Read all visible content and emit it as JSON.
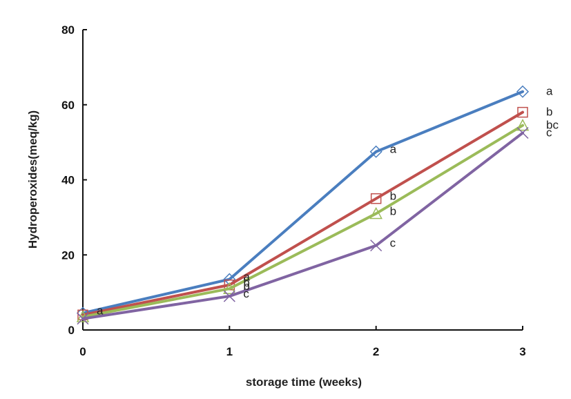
{
  "chart_data": {
    "type": "line",
    "xlabel": "storage time (weeks)",
    "ylabel": "Hydroperoxides(meq/kg)",
    "xlim": [
      0,
      3
    ],
    "ylim": [
      0,
      80
    ],
    "xticks": [
      0,
      1,
      2,
      3
    ],
    "yticks": [
      0,
      20,
      40,
      60,
      80
    ],
    "x": [
      0,
      1,
      2,
      3
    ],
    "grid": false,
    "series": [
      {
        "color": "#4a7ebf",
        "marker": "diamond",
        "values": [
          4.5,
          13.5,
          47.5,
          63.5
        ],
        "labels": [
          "a",
          "a",
          "a",
          "a"
        ]
      },
      {
        "color": "#c0504d",
        "marker": "square",
        "values": [
          4.0,
          12.0,
          35.0,
          58.0
        ],
        "labels": [
          "",
          "b",
          "b",
          "b"
        ]
      },
      {
        "color": "#9bbb59",
        "marker": "triangle",
        "values": [
          3.5,
          11.0,
          31.0,
          54.5
        ],
        "labels": [
          "",
          "b",
          "b",
          "bc"
        ]
      },
      {
        "color": "#8064a2",
        "marker": "x",
        "values": [
          3.0,
          9.0,
          22.5,
          52.5
        ],
        "labels": [
          "",
          "c",
          "c",
          "c"
        ]
      }
    ]
  }
}
